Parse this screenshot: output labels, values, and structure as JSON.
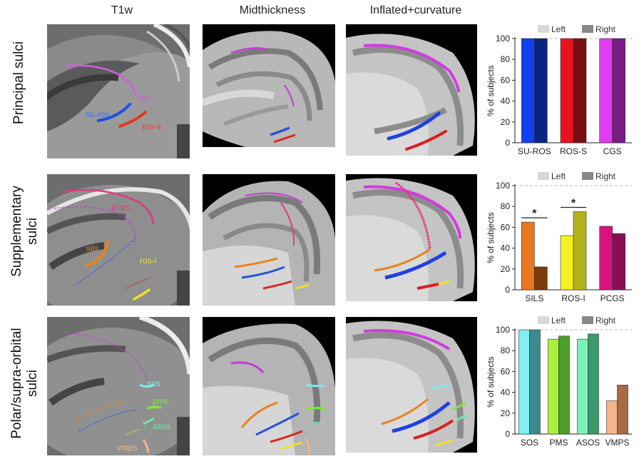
{
  "columns": [
    "T1w",
    "Midthickness",
    "Inflated+curvature"
  ],
  "rows": [
    {
      "label": "Principal sulci",
      "lines": [
        "Principal sulci"
      ]
    },
    {
      "label": "Supplementary sulci",
      "lines": [
        "Supplementary",
        "sulci"
      ]
    },
    {
      "label": "Polar/supra-orbital sulci",
      "lines": [
        "Polar/supra-orbital",
        "sulci"
      ]
    }
  ],
  "t1_labels": {
    "row1": [
      "cgs",
      "su-ros",
      "ros-s"
    ],
    "row2": [
      "pcgs",
      "sils",
      "ros-i"
    ],
    "row3": [
      "sos",
      "pms",
      "asos",
      "vmps"
    ]
  },
  "colors": {
    "cgs": "#c23bd3",
    "su_ros": "#2a52d6",
    "ros_s": "#d42a1e",
    "pcgs": "#e0377f",
    "sils": "#e8821e",
    "ros_i": "#f2e21f",
    "sos": "#7fe8ee",
    "pms": "#7be83b",
    "asos": "#6ee6a9",
    "vmps": "#f3b68c"
  },
  "chart_data": [
    {
      "type": "bar",
      "ylabel": "% of subjects",
      "ylim": [
        0,
        100
      ],
      "yticks": [
        0,
        20,
        40,
        60,
        80,
        100
      ],
      "legend": [
        "Left",
        "Right"
      ],
      "legend_position": "top",
      "categories": [
        "SU-ROS",
        "ROS-S",
        "CGS"
      ],
      "series": [
        {
          "name": "Left",
          "values": [
            100,
            100,
            100
          ]
        },
        {
          "name": "Right",
          "values": [
            100,
            100,
            100
          ]
        }
      ],
      "bar_colors": [
        [
          "#1240f0",
          "#0a2580"
        ],
        [
          "#e8121e",
          "#7a0d12"
        ],
        [
          "#e23cf0",
          "#7a1d86"
        ]
      ],
      "significance": []
    },
    {
      "type": "bar",
      "ylabel": "% of subjects",
      "ylim": [
        0,
        100
      ],
      "yticks": [
        0,
        20,
        40,
        60,
        80,
        100
      ],
      "legend": [
        "Left",
        "Right"
      ],
      "legend_position": "top",
      "categories": [
        "SILS",
        "ROS-I",
        "PCGS"
      ],
      "series": [
        {
          "name": "Left",
          "values": [
            65,
            52,
            61
          ]
        },
        {
          "name": "Right",
          "values": [
            22,
            75,
            54
          ]
        }
      ],
      "bar_colors": [
        [
          "#e8781e",
          "#7a3a0a"
        ],
        [
          "#f7f21f",
          "#b3b21a"
        ],
        [
          "#d8127e",
          "#8a0e52"
        ]
      ],
      "significance": [
        {
          "category_index": 0,
          "label": "*"
        },
        {
          "category_index": 1,
          "label": "*"
        }
      ]
    },
    {
      "type": "bar",
      "ylabel": "% of subjects",
      "ylim": [
        0,
        100
      ],
      "yticks": [
        0,
        20,
        40,
        60,
        80,
        100
      ],
      "legend": [
        "Left",
        "Right"
      ],
      "legend_position": "top",
      "categories": [
        "SOS",
        "PMS",
        "ASOS",
        "VMPS"
      ],
      "series": [
        {
          "name": "Left",
          "values": [
            100,
            91,
            91,
            32
          ]
        },
        {
          "name": "Right",
          "values": [
            100,
            94,
            96,
            47
          ]
        }
      ],
      "bar_colors": [
        [
          "#7ff0f4",
          "#3a8a8c"
        ],
        [
          "#a8f23a",
          "#4aa02a"
        ],
        [
          "#7cf2b8",
          "#3a9a6c"
        ],
        [
          "#f5b58a",
          "#a86a42"
        ]
      ],
      "significance": []
    }
  ]
}
